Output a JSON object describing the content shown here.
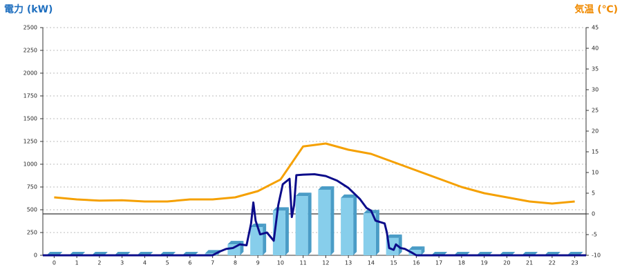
{
  "chart_data": {
    "type": "bar",
    "title_left": "電力 (kW)",
    "title_right": "気温 (℃)",
    "x": [
      0,
      1,
      2,
      3,
      4,
      5,
      6,
      7,
      8,
      9,
      10,
      11,
      12,
      13,
      14,
      15,
      16,
      17,
      18,
      19,
      20,
      21,
      22,
      23
    ],
    "values": [
      0,
      0,
      0,
      0,
      0,
      0,
      0,
      20,
      120,
      310,
      490,
      650,
      720,
      630,
      460,
      190,
      60,
      0,
      0,
      0,
      0,
      0,
      0,
      0
    ],
    "color": "#87ceeb",
    "side_color": "#4a9cc6",
    "xlim": [
      -0.5,
      23.5
    ],
    "xticks": [
      0,
      1,
      2,
      3,
      4,
      5,
      6,
      7,
      8,
      9,
      10,
      11,
      12,
      13,
      14,
      15,
      16,
      17,
      18,
      19,
      20,
      21,
      22,
      23
    ],
    "ylim": [
      0,
      2500
    ],
    "yticks": [
      0,
      250,
      500,
      750,
      1000,
      1250,
      1500,
      1750,
      2000,
      2250,
      2500
    ],
    "y2lim": [
      -10,
      45
    ],
    "y2ticks": [
      -10,
      -5,
      0,
      5,
      10,
      15,
      20,
      25,
      30,
      35,
      40,
      45
    ],
    "grid": true,
    "lines": [
      {
        "color": "#0c0c8a",
        "axis": "y",
        "x": [
          -0.5,
          7.0,
          7.3,
          7.6,
          7.9,
          8.2,
          8.5,
          8.7,
          8.8,
          8.9,
          9.1,
          9.4,
          9.7,
          9.9,
          10.1,
          10.3,
          10.4,
          10.5,
          10.6,
          10.7,
          11.0,
          11.5,
          12.0,
          12.5,
          13.0,
          13.5,
          13.8,
          14.0,
          14.2,
          14.6,
          14.7,
          14.8,
          15.0,
          15.1,
          15.3,
          15.5,
          15.8,
          16.0,
          23.5
        ],
        "values": [
          0,
          0,
          40,
          70,
          80,
          120,
          110,
          350,
          580,
          380,
          230,
          250,
          160,
          550,
          780,
          820,
          840,
          420,
          550,
          880,
          885,
          890,
          870,
          820,
          740,
          620,
          520,
          490,
          380,
          350,
          250,
          80,
          60,
          120,
          80,
          70,
          30,
          0,
          0
        ]
      },
      {
        "color": "#f5a000",
        "axis": "y2",
        "x": [
          0,
          1,
          2,
          3,
          4,
          5,
          6,
          7,
          8,
          9,
          10,
          11,
          12,
          13,
          14,
          15,
          16,
          17,
          18,
          19,
          20,
          21,
          22,
          23
        ],
        "values": [
          4,
          3.5,
          3.2,
          3.3,
          3,
          3,
          3.5,
          3.5,
          4,
          5.5,
          8.3,
          16.3,
          17,
          15.5,
          14.5,
          12.5,
          10.5,
          8.5,
          6.5,
          5,
          4,
          3,
          2.5,
          3
        ]
      }
    ]
  }
}
